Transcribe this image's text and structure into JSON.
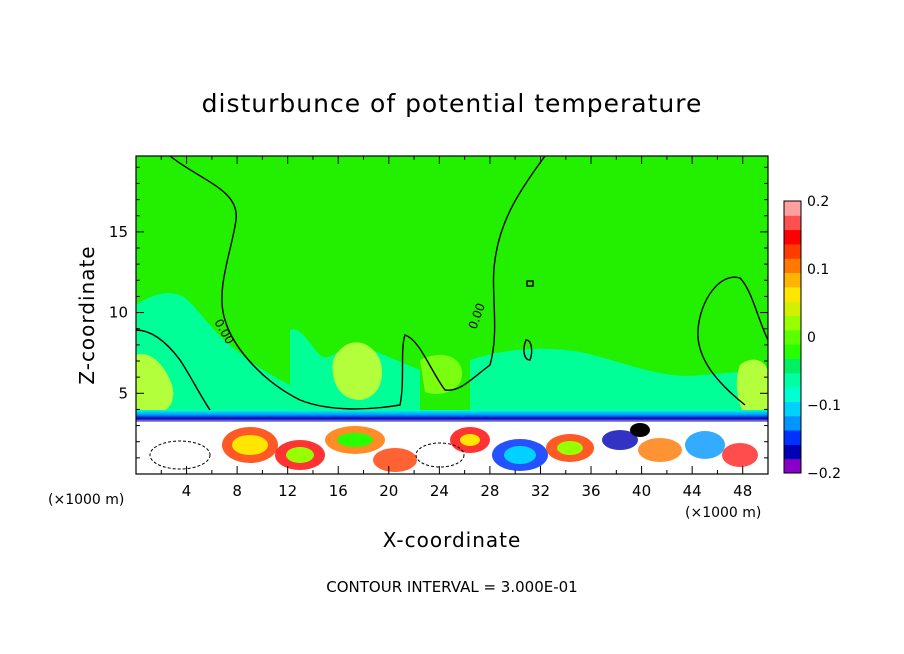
{
  "chart_data": {
    "type": "heatmap",
    "title": "disturbunce of potential temperature",
    "xlabel": "X-coordinate",
    "ylabel": "Z-coordinate",
    "x_unit_left": "(×1000 m)",
    "x_unit_right": "(×1000 m)",
    "footer": "CONTOUR INTERVAL = 3.000E-01",
    "xlim": [
      0,
      50
    ],
    "ylim": [
      0,
      19.7
    ],
    "x_ticks": [
      4,
      8,
      12,
      16,
      20,
      24,
      28,
      32,
      36,
      40,
      44,
      48
    ],
    "y_ticks": [
      5,
      10,
      15
    ],
    "x_tick_labels": [
      "4",
      "8",
      "12",
      "16",
      "20",
      "24",
      "28",
      "32",
      "36",
      "40",
      "44",
      "48"
    ],
    "y_tick_labels": [
      "5",
      "10",
      "15"
    ],
    "contour_label_a": "0.00",
    "contour_label_b": "0.00",
    "colorbar": {
      "range": [
        -0.2,
        0.2
      ],
      "ticks": [
        0.2,
        0.1,
        0,
        -0.1,
        -0.2
      ],
      "tick_labels": [
        "0.2",
        "0.1",
        "0",
        "−0.1",
        "−0.2"
      ],
      "colors": [
        "#8a00c8",
        "#0000b4",
        "#0032ff",
        "#0096ff",
        "#00d2ff",
        "#00ffd2",
        "#00ffa0",
        "#00f064",
        "#28ff00",
        "#5aff00",
        "#96ff00",
        "#d2f000",
        "#ffe600",
        "#ffb400",
        "#ff7800",
        "#ff3c00",
        "#ff0000",
        "#ff5050",
        "#ffa0a0"
      ]
    },
    "regions": {
      "background_color": "#22f000",
      "cool_color": "#00ff96",
      "warm_color": "#b4ff3c"
    }
  }
}
